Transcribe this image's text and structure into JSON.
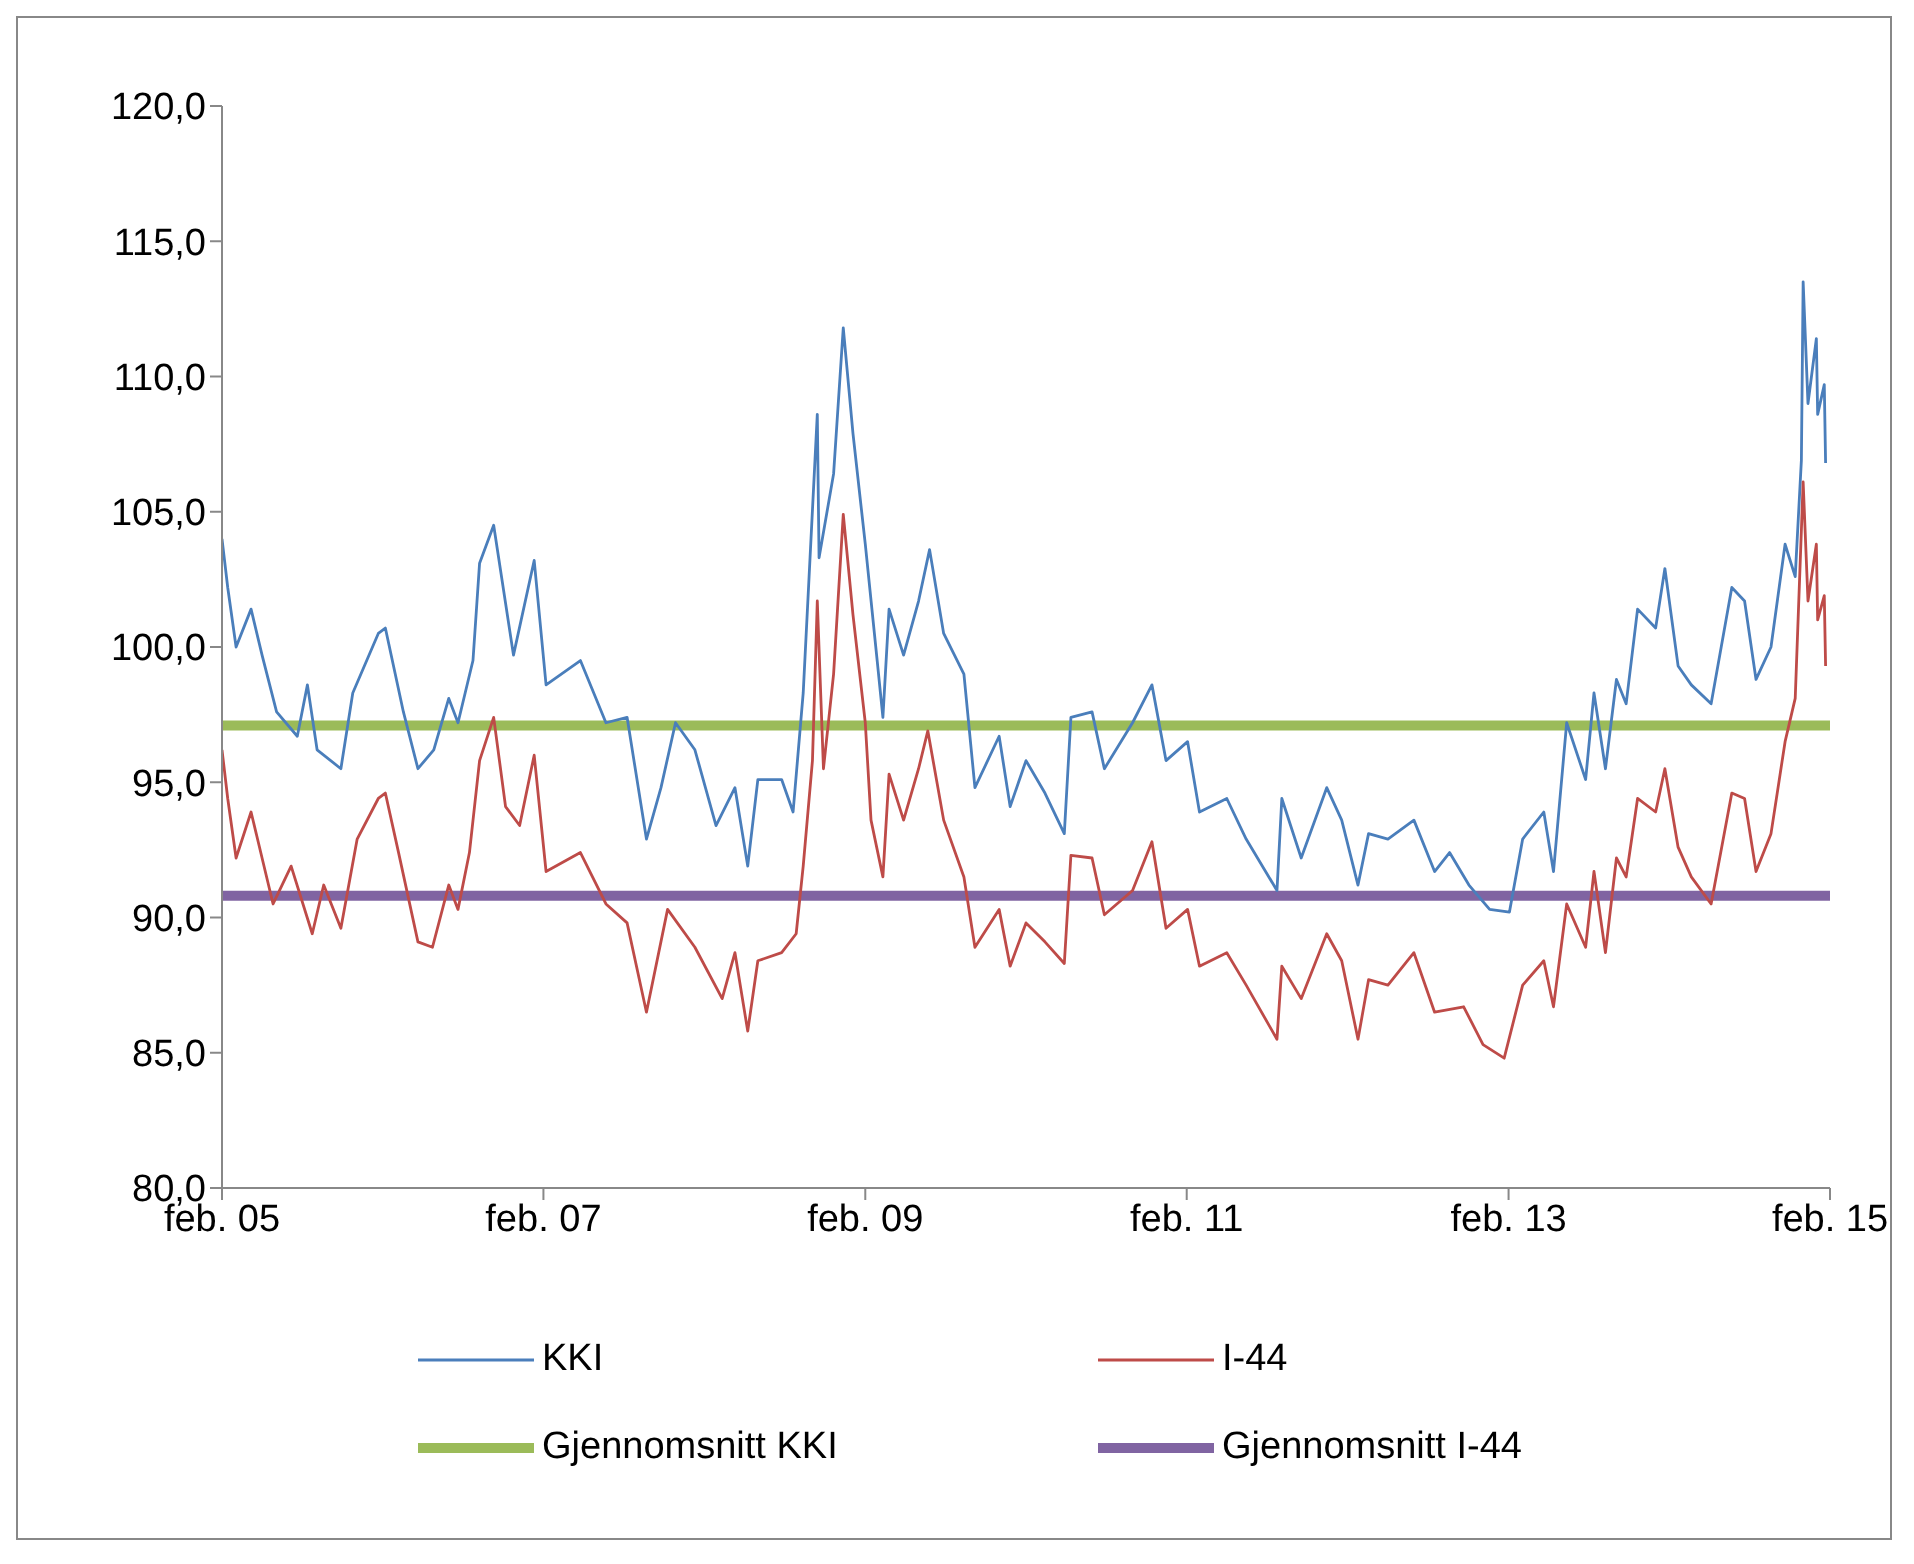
{
  "chart_data": {
    "type": "line",
    "xlim": [
      "2005-02-01",
      "2015-02-01"
    ],
    "ylim": [
      80,
      120
    ],
    "xticks": [
      {
        "value": "2005-02-01",
        "label": "feb. 05"
      },
      {
        "value": "2007-02-01",
        "label": "feb. 07"
      },
      {
        "value": "2009-02-01",
        "label": "feb. 09"
      },
      {
        "value": "2011-02-01",
        "label": "feb. 11"
      },
      {
        "value": "2013-02-01",
        "label": "feb. 13"
      },
      {
        "value": "2015-02-01",
        "label": "feb. 15"
      }
    ],
    "yticks": [
      {
        "value": 80,
        "label": "80,0"
      },
      {
        "value": 85,
        "label": "85,0"
      },
      {
        "value": 90,
        "label": "90,0"
      },
      {
        "value": 95,
        "label": "95,0"
      },
      {
        "value": 100,
        "label": "100,0"
      },
      {
        "value": 105,
        "label": "105,0"
      },
      {
        "value": 110,
        "label": "110,0"
      },
      {
        "value": 115,
        "label": "115,0"
      },
      {
        "value": 120,
        "label": "120,0"
      }
    ],
    "grid": false,
    "legend": "bottom",
    "marker": "none",
    "line_style": "solid",
    "series": [
      {
        "name": "KKI",
        "color": "#4a7ebb",
        "x": [
          "2005-02-01",
          "2005-02-14",
          "2005-03-05",
          "2005-04-08",
          "2005-05-03",
          "2005-06-05",
          "2005-07-22",
          "2005-08-14",
          "2005-09-05",
          "2005-10-29",
          "2005-11-25",
          "2006-01-22",
          "2006-02-07",
          "2006-03-20",
          "2006-04-22",
          "2006-05-28",
          "2006-07-01",
          "2006-07-22",
          "2006-08-25",
          "2006-09-09",
          "2006-10-11",
          "2006-11-25",
          "2007-01-11",
          "2007-02-07",
          "2007-04-26",
          "2007-06-23",
          "2007-08-10",
          "2007-09-23",
          "2007-10-26",
          "2007-11-28",
          "2008-01-11",
          "2008-02-28",
          "2008-04-11",
          "2008-05-10",
          "2008-06-02",
          "2008-07-26",
          "2008-08-21",
          "2008-09-13",
          "2008-10-15",
          "2008-10-19",
          "2008-11-21",
          "2008-12-13",
          "2009-01-04",
          "2009-02-01",
          "2009-02-28",
          "2009-03-13",
          "2009-03-27",
          "2009-04-29",
          "2009-06-02",
          "2009-06-27",
          "2009-07-29",
          "2009-09-13",
          "2009-10-08",
          "2009-12-02",
          "2009-12-27",
          "2010-02-01",
          "2010-03-16",
          "2010-04-29",
          "2010-05-14",
          "2010-07-01",
          "2010-07-29",
          "2010-10-01",
          "2010-11-14",
          "2010-12-16",
          "2011-02-03",
          "2011-03-02",
          "2011-05-03",
          "2011-06-16",
          "2011-08-25",
          "2011-09-05",
          "2011-10-19",
          "2011-12-16",
          "2012-01-19",
          "2012-02-25",
          "2012-03-20",
          "2012-05-03",
          "2012-07-01",
          "2012-08-17",
          "2012-09-20",
          "2012-11-03",
          "2012-12-20",
          "2013-02-03",
          "2013-03-05",
          "2013-04-22",
          "2013-05-14",
          "2013-06-13",
          "2013-07-26",
          "2013-08-14",
          "2013-09-09",
          "2013-10-04",
          "2013-10-26",
          "2013-11-21",
          "2014-01-01",
          "2014-01-22",
          "2014-02-21",
          "2014-03-23",
          "2014-05-07",
          "2014-06-23",
          "2014-07-22",
          "2014-08-17",
          "2014-09-20",
          "2014-10-22",
          "2014-11-14",
          "2014-11-28",
          "2014-12-02",
          "2014-12-13",
          "2015-01-01",
          "2015-01-04",
          "2015-01-19",
          "2015-01-22"
        ],
        "values": [
          104.0,
          102.2,
          100.0,
          101.4,
          99.7,
          97.6,
          96.7,
          98.6,
          96.2,
          95.5,
          98.3,
          100.5,
          100.7,
          97.6,
          95.5,
          96.2,
          98.1,
          97.2,
          99.5,
          103.1,
          104.5,
          99.7,
          103.2,
          98.6,
          99.5,
          97.2,
          97.4,
          92.9,
          94.8,
          97.2,
          96.2,
          93.4,
          94.8,
          91.9,
          95.1,
          95.1,
          93.9,
          98.3,
          108.6,
          103.3,
          106.4,
          111.8,
          107.9,
          103.8,
          99.5,
          97.4,
          101.4,
          99.7,
          101.7,
          103.6,
          100.5,
          99.0,
          94.8,
          96.7,
          94.1,
          95.8,
          94.6,
          93.1,
          97.4,
          97.6,
          95.5,
          97.2,
          98.6,
          95.8,
          96.5,
          93.9,
          94.4,
          92.9,
          91.0,
          94.4,
          92.2,
          94.8,
          93.6,
          91.2,
          93.1,
          92.9,
          93.6,
          91.7,
          92.4,
          91.2,
          90.3,
          90.2,
          92.9,
          93.9,
          91.7,
          97.2,
          95.1,
          98.3,
          95.5,
          98.8,
          97.9,
          101.4,
          100.7,
          102.9,
          99.3,
          98.6,
          97.9,
          102.2,
          101.7,
          98.8,
          100.0,
          103.8,
          102.6,
          106.9,
          113.5,
          109.0,
          111.4,
          108.6,
          109.7,
          106.8
        ]
      },
      {
        "name": "I-44",
        "color": "#be4b48",
        "x": [
          "2005-02-01",
          "2005-02-14",
          "2005-03-05",
          "2005-04-08",
          "2005-05-03",
          "2005-05-28",
          "2005-07-08",
          "2005-08-25",
          "2005-09-20",
          "2005-10-29",
          "2005-12-05",
          "2006-01-22",
          "2006-02-07",
          "2006-03-09",
          "2006-04-22",
          "2006-05-25",
          "2006-07-01",
          "2006-07-22",
          "2006-08-17",
          "2006-09-09",
          "2006-10-11",
          "2006-11-07",
          "2006-12-09",
          "2007-01-11",
          "2007-02-07",
          "2007-04-26",
          "2007-06-23",
          "2007-08-10",
          "2007-09-23",
          "2007-11-10",
          "2008-01-11",
          "2008-03-13",
          "2008-04-11",
          "2008-05-10",
          "2008-06-02",
          "2008-07-26",
          "2008-08-28",
          "2008-09-13",
          "2008-10-04",
          "2008-10-15",
          "2008-10-29",
          "2008-11-21",
          "2008-12-13",
          "2009-01-04",
          "2009-02-01",
          "2009-02-14",
          "2009-03-13",
          "2009-03-27",
          "2009-04-29",
          "2009-06-02",
          "2009-06-23",
          "2009-07-29",
          "2009-09-13",
          "2009-10-08",
          "2009-12-02",
          "2009-12-27",
          "2010-02-01",
          "2010-03-16",
          "2010-04-29",
          "2010-05-14",
          "2010-07-01",
          "2010-07-29",
          "2010-10-01",
          "2010-11-14",
          "2010-12-16",
          "2011-02-03",
          "2011-03-02",
          "2011-05-03",
          "2011-06-16",
          "2011-08-25",
          "2011-09-05",
          "2011-10-19",
          "2011-12-16",
          "2012-01-19",
          "2012-02-25",
          "2012-03-20",
          "2012-05-03",
          "2012-07-01",
          "2012-08-17",
          "2012-10-22",
          "2012-12-05",
          "2013-01-22",
          "2013-03-05",
          "2013-04-22",
          "2013-05-14",
          "2013-06-13",
          "2013-07-26",
          "2013-08-14",
          "2013-09-09",
          "2013-10-04",
          "2013-10-26",
          "2013-11-21",
          "2014-01-01",
          "2014-01-22",
          "2014-02-21",
          "2014-03-23",
          "2014-05-07",
          "2014-06-23",
          "2014-07-22",
          "2014-08-17",
          "2014-09-20",
          "2014-10-22",
          "2014-11-14",
          "2014-12-02",
          "2014-12-13",
          "2015-01-01",
          "2015-01-04",
          "2015-01-19",
          "2015-01-22"
        ],
        "values": [
          96.2,
          94.4,
          92.2,
          93.9,
          92.2,
          90.5,
          91.9,
          89.4,
          91.2,
          89.6,
          92.9,
          94.4,
          94.6,
          92.4,
          89.1,
          88.9,
          91.2,
          90.3,
          92.4,
          95.8,
          97.4,
          94.1,
          93.4,
          96.0,
          91.7,
          92.4,
          90.5,
          89.8,
          86.5,
          90.3,
          88.9,
          87.0,
          88.7,
          85.8,
          88.4,
          88.7,
          89.4,
          91.9,
          95.8,
          101.7,
          95.5,
          99.0,
          104.9,
          101.2,
          97.2,
          93.6,
          91.5,
          95.3,
          93.6,
          95.5,
          96.9,
          93.6,
          91.5,
          88.9,
          90.3,
          88.2,
          89.8,
          89.1,
          88.3,
          92.3,
          92.2,
          90.1,
          91.0,
          92.8,
          89.6,
          90.3,
          88.2,
          88.7,
          87.5,
          85.5,
          88.2,
          87.0,
          89.4,
          88.4,
          85.5,
          87.7,
          87.5,
          88.7,
          86.5,
          86.7,
          85.3,
          84.8,
          87.5,
          88.4,
          86.7,
          90.5,
          88.9,
          91.7,
          88.7,
          92.2,
          91.5,
          94.4,
          93.9,
          95.5,
          92.6,
          91.5,
          90.5,
          94.6,
          94.4,
          91.7,
          93.1,
          96.5,
          98.1,
          106.1,
          101.7,
          103.8,
          101.0,
          101.9,
          99.3
        ]
      }
    ],
    "ref_lines": [
      {
        "axis": "y",
        "value": 97.1,
        "label": "Gjennomsnitt KKI",
        "color": "#9bbb59"
      },
      {
        "axis": "y",
        "value": 90.8,
        "label": "Gjennomsnitt I-44",
        "color": "#8064a2"
      }
    ]
  }
}
